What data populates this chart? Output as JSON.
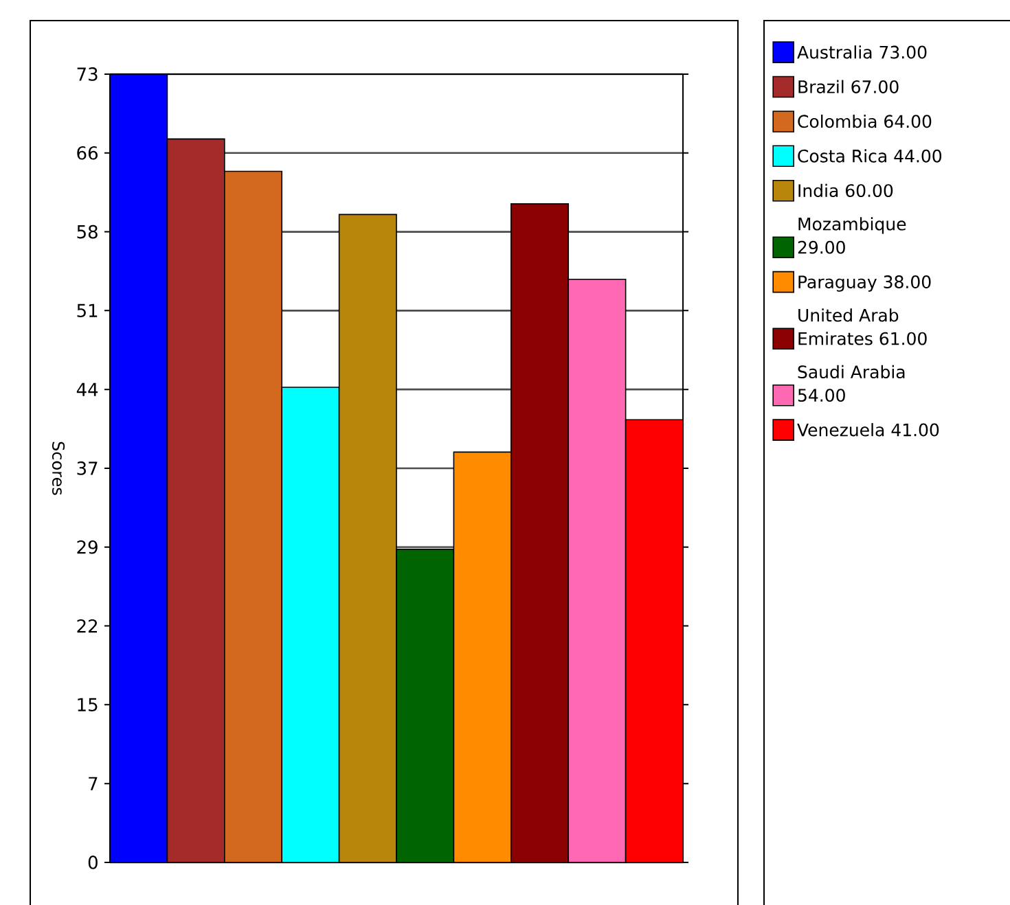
{
  "chart_data": {
    "type": "bar",
    "ylabel": "Scores",
    "categories": [
      null
    ],
    "series": [
      {
        "name": "Australia  73.00",
        "color": "#0000ff",
        "values": [
          73
        ]
      },
      {
        "name": "Brazil  67.00",
        "color": "#a52a2a",
        "values": [
          67
        ]
      },
      {
        "name": "Colombia  64.00",
        "color": "#d2691e",
        "values": [
          64
        ]
      },
      {
        "name": "Costa Rica  44.00",
        "color": "#00ffff",
        "values": [
          44
        ]
      },
      {
        "name": "India  60.00",
        "color": "#b8860b",
        "values": [
          60
        ]
      },
      {
        "name": "Mozambique  29.00",
        "color": "#006400",
        "values": [
          29
        ]
      },
      {
        "name": "Paraguay  38.00",
        "color": "#ff8c00",
        "values": [
          38
        ]
      },
      {
        "name": "United Arab Emirates  61.00",
        "color": "#8b0000",
        "values": [
          61
        ]
      },
      {
        "name": "Saudi Arabia  54.00",
        "color": "#ff69b4",
        "values": [
          54
        ]
      },
      {
        "name": "Venezuela  41.00",
        "color": "#ff0000",
        "values": [
          41
        ]
      }
    ],
    "ylim": [
      0,
      73
    ],
    "yticks": [
      0,
      {
        "value": 7.3,
        "label": "7"
      },
      {
        "value": 14.6,
        "label": "15"
      },
      {
        "value": 21.9,
        "label": "22"
      },
      {
        "value": 29.2,
        "label": "29"
      },
      {
        "value": 36.5,
        "label": "37"
      },
      {
        "value": 43.8,
        "label": "44"
      },
      {
        "value": 51.1,
        "label": "51"
      },
      {
        "value": 58.4,
        "label": "58"
      },
      {
        "value": 65.7,
        "label": "66"
      },
      73
    ],
    "grid": "y",
    "legend": "right"
  }
}
